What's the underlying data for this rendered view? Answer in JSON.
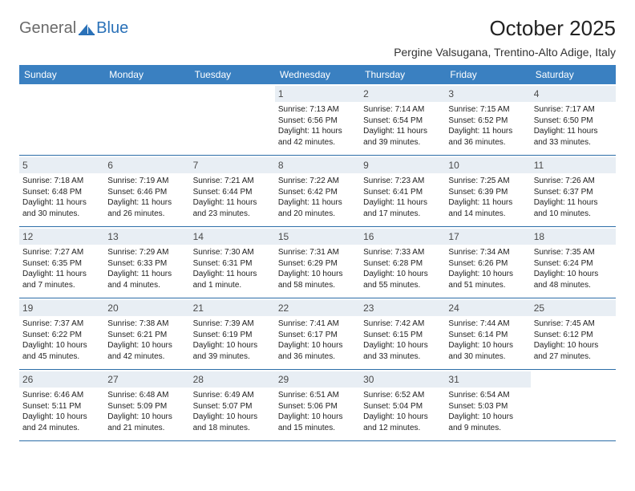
{
  "logo": {
    "general": "General",
    "blue": "Blue"
  },
  "title": "October 2025",
  "location": "Pergine Valsugana, Trentino-Alto Adige, Italy",
  "colors": {
    "header_bg": "#3a80c1",
    "daynum_bg": "#e8eef4",
    "week_border": "#2c6da8",
    "logo_gray": "#6a6a6a",
    "logo_blue": "#2a71b8"
  },
  "weekdays": [
    "Sunday",
    "Monday",
    "Tuesday",
    "Wednesday",
    "Thursday",
    "Friday",
    "Saturday"
  ],
  "weeks": [
    [
      {
        "n": "",
        "sr": "",
        "ss": "",
        "dl": ""
      },
      {
        "n": "",
        "sr": "",
        "ss": "",
        "dl": ""
      },
      {
        "n": "",
        "sr": "",
        "ss": "",
        "dl": ""
      },
      {
        "n": "1",
        "sr": "Sunrise: 7:13 AM",
        "ss": "Sunset: 6:56 PM",
        "dl": "Daylight: 11 hours and 42 minutes."
      },
      {
        "n": "2",
        "sr": "Sunrise: 7:14 AM",
        "ss": "Sunset: 6:54 PM",
        "dl": "Daylight: 11 hours and 39 minutes."
      },
      {
        "n": "3",
        "sr": "Sunrise: 7:15 AM",
        "ss": "Sunset: 6:52 PM",
        "dl": "Daylight: 11 hours and 36 minutes."
      },
      {
        "n": "4",
        "sr": "Sunrise: 7:17 AM",
        "ss": "Sunset: 6:50 PM",
        "dl": "Daylight: 11 hours and 33 minutes."
      }
    ],
    [
      {
        "n": "5",
        "sr": "Sunrise: 7:18 AM",
        "ss": "Sunset: 6:48 PM",
        "dl": "Daylight: 11 hours and 30 minutes."
      },
      {
        "n": "6",
        "sr": "Sunrise: 7:19 AM",
        "ss": "Sunset: 6:46 PM",
        "dl": "Daylight: 11 hours and 26 minutes."
      },
      {
        "n": "7",
        "sr": "Sunrise: 7:21 AM",
        "ss": "Sunset: 6:44 PM",
        "dl": "Daylight: 11 hours and 23 minutes."
      },
      {
        "n": "8",
        "sr": "Sunrise: 7:22 AM",
        "ss": "Sunset: 6:42 PM",
        "dl": "Daylight: 11 hours and 20 minutes."
      },
      {
        "n": "9",
        "sr": "Sunrise: 7:23 AM",
        "ss": "Sunset: 6:41 PM",
        "dl": "Daylight: 11 hours and 17 minutes."
      },
      {
        "n": "10",
        "sr": "Sunrise: 7:25 AM",
        "ss": "Sunset: 6:39 PM",
        "dl": "Daylight: 11 hours and 14 minutes."
      },
      {
        "n": "11",
        "sr": "Sunrise: 7:26 AM",
        "ss": "Sunset: 6:37 PM",
        "dl": "Daylight: 11 hours and 10 minutes."
      }
    ],
    [
      {
        "n": "12",
        "sr": "Sunrise: 7:27 AM",
        "ss": "Sunset: 6:35 PM",
        "dl": "Daylight: 11 hours and 7 minutes."
      },
      {
        "n": "13",
        "sr": "Sunrise: 7:29 AM",
        "ss": "Sunset: 6:33 PM",
        "dl": "Daylight: 11 hours and 4 minutes."
      },
      {
        "n": "14",
        "sr": "Sunrise: 7:30 AM",
        "ss": "Sunset: 6:31 PM",
        "dl": "Daylight: 11 hours and 1 minute."
      },
      {
        "n": "15",
        "sr": "Sunrise: 7:31 AM",
        "ss": "Sunset: 6:29 PM",
        "dl": "Daylight: 10 hours and 58 minutes."
      },
      {
        "n": "16",
        "sr": "Sunrise: 7:33 AM",
        "ss": "Sunset: 6:28 PM",
        "dl": "Daylight: 10 hours and 55 minutes."
      },
      {
        "n": "17",
        "sr": "Sunrise: 7:34 AM",
        "ss": "Sunset: 6:26 PM",
        "dl": "Daylight: 10 hours and 51 minutes."
      },
      {
        "n": "18",
        "sr": "Sunrise: 7:35 AM",
        "ss": "Sunset: 6:24 PM",
        "dl": "Daylight: 10 hours and 48 minutes."
      }
    ],
    [
      {
        "n": "19",
        "sr": "Sunrise: 7:37 AM",
        "ss": "Sunset: 6:22 PM",
        "dl": "Daylight: 10 hours and 45 minutes."
      },
      {
        "n": "20",
        "sr": "Sunrise: 7:38 AM",
        "ss": "Sunset: 6:21 PM",
        "dl": "Daylight: 10 hours and 42 minutes."
      },
      {
        "n": "21",
        "sr": "Sunrise: 7:39 AM",
        "ss": "Sunset: 6:19 PM",
        "dl": "Daylight: 10 hours and 39 minutes."
      },
      {
        "n": "22",
        "sr": "Sunrise: 7:41 AM",
        "ss": "Sunset: 6:17 PM",
        "dl": "Daylight: 10 hours and 36 minutes."
      },
      {
        "n": "23",
        "sr": "Sunrise: 7:42 AM",
        "ss": "Sunset: 6:15 PM",
        "dl": "Daylight: 10 hours and 33 minutes."
      },
      {
        "n": "24",
        "sr": "Sunrise: 7:44 AM",
        "ss": "Sunset: 6:14 PM",
        "dl": "Daylight: 10 hours and 30 minutes."
      },
      {
        "n": "25",
        "sr": "Sunrise: 7:45 AM",
        "ss": "Sunset: 6:12 PM",
        "dl": "Daylight: 10 hours and 27 minutes."
      }
    ],
    [
      {
        "n": "26",
        "sr": "Sunrise: 6:46 AM",
        "ss": "Sunset: 5:11 PM",
        "dl": "Daylight: 10 hours and 24 minutes."
      },
      {
        "n": "27",
        "sr": "Sunrise: 6:48 AM",
        "ss": "Sunset: 5:09 PM",
        "dl": "Daylight: 10 hours and 21 minutes."
      },
      {
        "n": "28",
        "sr": "Sunrise: 6:49 AM",
        "ss": "Sunset: 5:07 PM",
        "dl": "Daylight: 10 hours and 18 minutes."
      },
      {
        "n": "29",
        "sr": "Sunrise: 6:51 AM",
        "ss": "Sunset: 5:06 PM",
        "dl": "Daylight: 10 hours and 15 minutes."
      },
      {
        "n": "30",
        "sr": "Sunrise: 6:52 AM",
        "ss": "Sunset: 5:04 PM",
        "dl": "Daylight: 10 hours and 12 minutes."
      },
      {
        "n": "31",
        "sr": "Sunrise: 6:54 AM",
        "ss": "Sunset: 5:03 PM",
        "dl": "Daylight: 10 hours and 9 minutes."
      },
      {
        "n": "",
        "sr": "",
        "ss": "",
        "dl": ""
      }
    ]
  ]
}
